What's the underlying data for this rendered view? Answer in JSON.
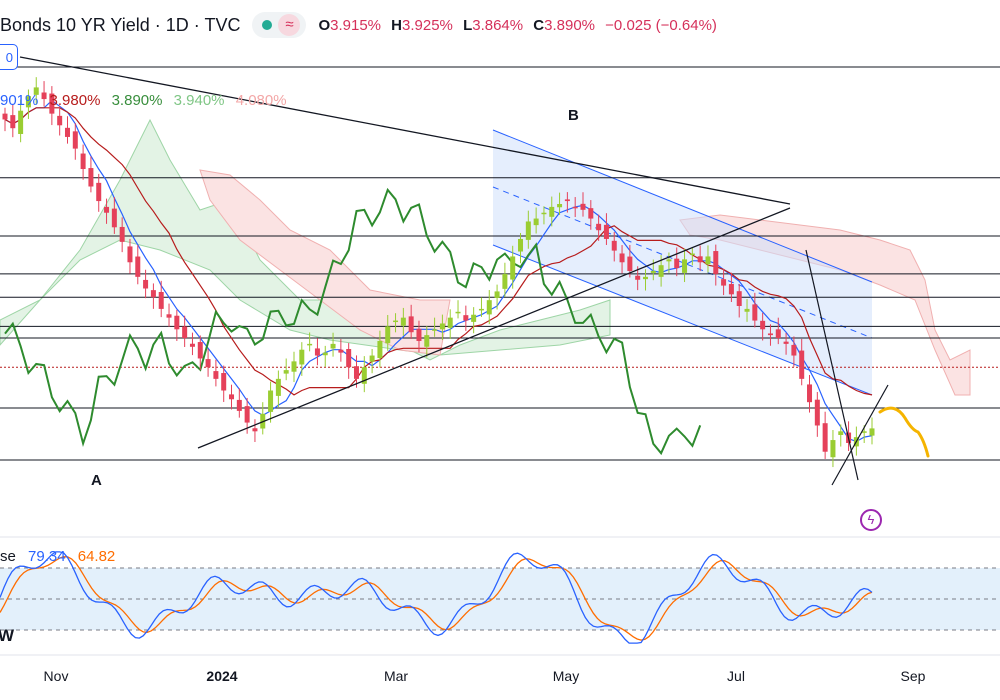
{
  "header": {
    "title": "Bonds 10 YR Yield · 1D · TVC",
    "wave_icon": "≈",
    "ohlc": {
      "o_label": "O",
      "o": "3.915%",
      "h_label": "H",
      "h": "3.925%",
      "l_label": "L",
      "l": "3.864%",
      "c_label": "C",
      "c": "3.890%",
      "change": "−0.025 (−0.64%)"
    }
  },
  "badge_text": "0",
  "ichimoku_values": [
    {
      "text": "901%",
      "color": "#2962ff"
    },
    {
      "text": "3.980%",
      "color": "#b71c1c"
    },
    {
      "text": "3.890%",
      "color": "#388e3c"
    },
    {
      "text": "3.940%",
      "color": "#7fc685"
    },
    {
      "text": "4.080%",
      "color": "#f3a7a7"
    }
  ],
  "annotations": {
    "a": "A",
    "b": "B"
  },
  "stoch": {
    "name": "se",
    "k": "79.34",
    "d": "64.82"
  },
  "w_label": "W",
  "x_ticks": [
    {
      "label": "Nov",
      "year": false
    },
    {
      "label": "2024",
      "year": true
    },
    {
      "label": "Mar",
      "year": false
    },
    {
      "label": "May",
      "year": false
    },
    {
      "label": "Jul",
      "year": false
    },
    {
      "label": "Sep",
      "year": false
    }
  ],
  "chart_data": {
    "type": "candlestick",
    "symbol": "Bonds 10 YR Yield",
    "interval": "1D",
    "horizontal_levels": [
      5.13,
      4.75,
      4.55,
      4.42,
      4.34,
      4.24,
      4.2,
      4.1,
      3.96
    ],
    "candles_close": [
      4.95,
      4.92,
      4.98,
      5.03,
      5.06,
      5.02,
      4.97,
      4.93,
      4.89,
      4.85,
      4.78,
      4.72,
      4.67,
      4.63,
      4.58,
      4.53,
      4.46,
      4.41,
      4.37,
      4.34,
      4.3,
      4.27,
      4.23,
      4.2,
      4.17,
      4.13,
      4.1,
      4.06,
      4.02,
      3.99,
      3.95,
      3.91,
      3.88,
      3.94,
      4.02,
      4.06,
      4.09,
      4.12,
      4.16,
      4.18,
      4.14,
      4.15,
      4.18,
      4.15,
      4.1,
      4.06,
      4.1,
      4.14,
      4.19,
      4.24,
      4.26,
      4.27,
      4.22,
      4.19,
      4.21,
      4.23,
      4.25,
      4.27,
      4.29,
      4.26,
      4.28,
      4.3,
      4.33,
      4.36,
      4.42,
      4.48,
      4.54,
      4.6,
      4.61,
      4.63,
      4.65,
      4.66,
      4.67,
      4.65,
      4.64,
      4.61,
      4.57,
      4.54,
      4.5,
      4.46,
      4.43,
      4.4,
      4.41,
      4.43,
      4.45,
      4.47,
      4.44,
      4.47,
      4.49,
      4.46,
      4.48,
      4.42,
      4.38,
      4.35,
      4.31,
      4.3,
      4.26,
      4.23,
      4.21,
      4.2,
      4.18,
      4.14,
      4.06,
      3.98,
      3.9,
      3.81,
      3.85,
      3.88,
      3.84,
      3.86,
      3.88,
      3.89
    ],
    "trendlines": [
      "resistance from Oct high",
      "support from A low",
      "descending channel from B"
    ],
    "points": [
      "A",
      "B"
    ],
    "stochastic": {
      "k": 79.34,
      "d": 64.82,
      "upper": 80,
      "lower": 20
    },
    "x_ticks": [
      "Nov",
      "2024",
      "Mar",
      "May",
      "Jul",
      "Sep"
    ]
  }
}
